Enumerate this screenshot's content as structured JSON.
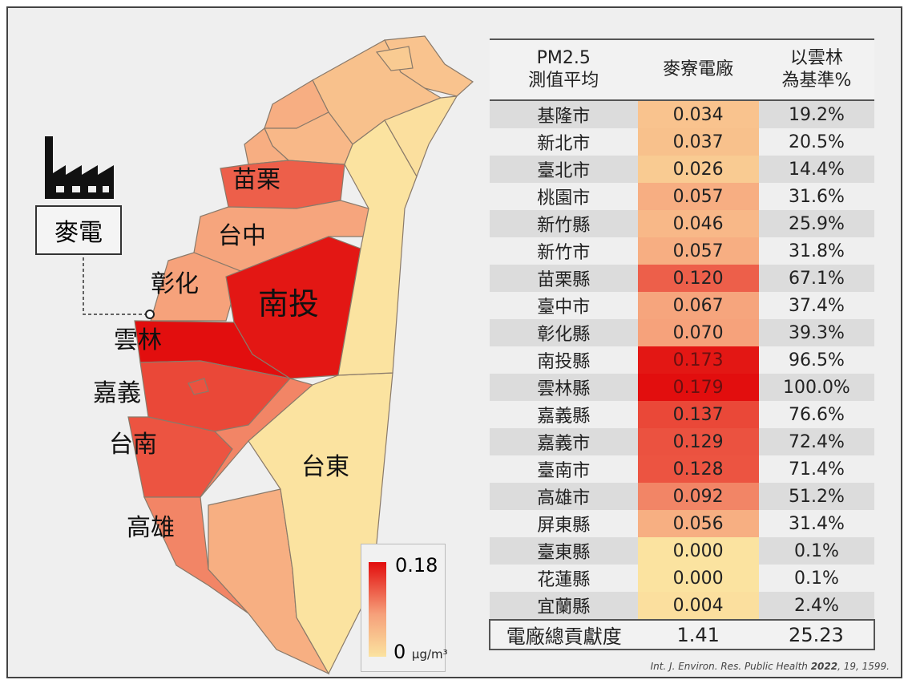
{
  "map": {
    "labels": {
      "miaoli": "苗栗",
      "taichung": "台中",
      "changhua": "彰化",
      "nantou": "南投",
      "yunlin": "雲林",
      "chiayi": "嘉義",
      "tainan": "台南",
      "kaohsiung": "高雄",
      "taitung": "台東"
    },
    "plant_label": "麥電",
    "legend": {
      "max": "0.18",
      "min": "0",
      "unit": "μg/m³",
      "color_max": "#e20d0d",
      "color_mid": "#f6a07a",
      "color_min": "#fbe3a0"
    }
  },
  "table": {
    "headers": [
      "PM2.5\n測值平均",
      "麥寮電廠",
      "以雲林\n為基準%"
    ],
    "rows": [
      {
        "name": "基隆市",
        "value": "0.034",
        "pct": "19.2%"
      },
      {
        "name": "新北市",
        "value": "0.037",
        "pct": "20.5%"
      },
      {
        "name": "臺北市",
        "value": "0.026",
        "pct": "14.4%"
      },
      {
        "name": "桃園市",
        "value": "0.057",
        "pct": "31.6%"
      },
      {
        "name": "新竹縣",
        "value": "0.046",
        "pct": "25.9%"
      },
      {
        "name": "新竹市",
        "value": "0.057",
        "pct": "31.8%"
      },
      {
        "name": "苗栗縣",
        "value": "0.120",
        "pct": "67.1%"
      },
      {
        "name": "臺中市",
        "value": "0.067",
        "pct": "37.4%"
      },
      {
        "name": "彰化縣",
        "value": "0.070",
        "pct": "39.3%"
      },
      {
        "name": "南投縣",
        "value": "0.173",
        "pct": "96.5%"
      },
      {
        "name": "雲林縣",
        "value": "0.179",
        "pct": "100.0%"
      },
      {
        "name": "嘉義縣",
        "value": "0.137",
        "pct": "76.6%"
      },
      {
        "name": "嘉義市",
        "value": "0.129",
        "pct": "72.4%"
      },
      {
        "name": "臺南市",
        "value": "0.128",
        "pct": "71.4%"
      },
      {
        "name": "高雄市",
        "value": "0.092",
        "pct": "51.2%"
      },
      {
        "name": "屏東縣",
        "value": "0.056",
        "pct": "31.4%"
      },
      {
        "name": "臺東縣",
        "value": "0.000",
        "pct": "0.1%"
      },
      {
        "name": "花蓮縣",
        "value": "0.000",
        "pct": "0.1%"
      },
      {
        "name": "宜蘭縣",
        "value": "0.004",
        "pct": "2.4%"
      }
    ],
    "total": {
      "name": "電廠總貢獻度",
      "value": "1.41",
      "pct": "25.23"
    }
  },
  "citation": {
    "prefix": "Int. J. Environ. Res. Public Health ",
    "year": "2022",
    "suffix": ", 19, 1599."
  }
}
